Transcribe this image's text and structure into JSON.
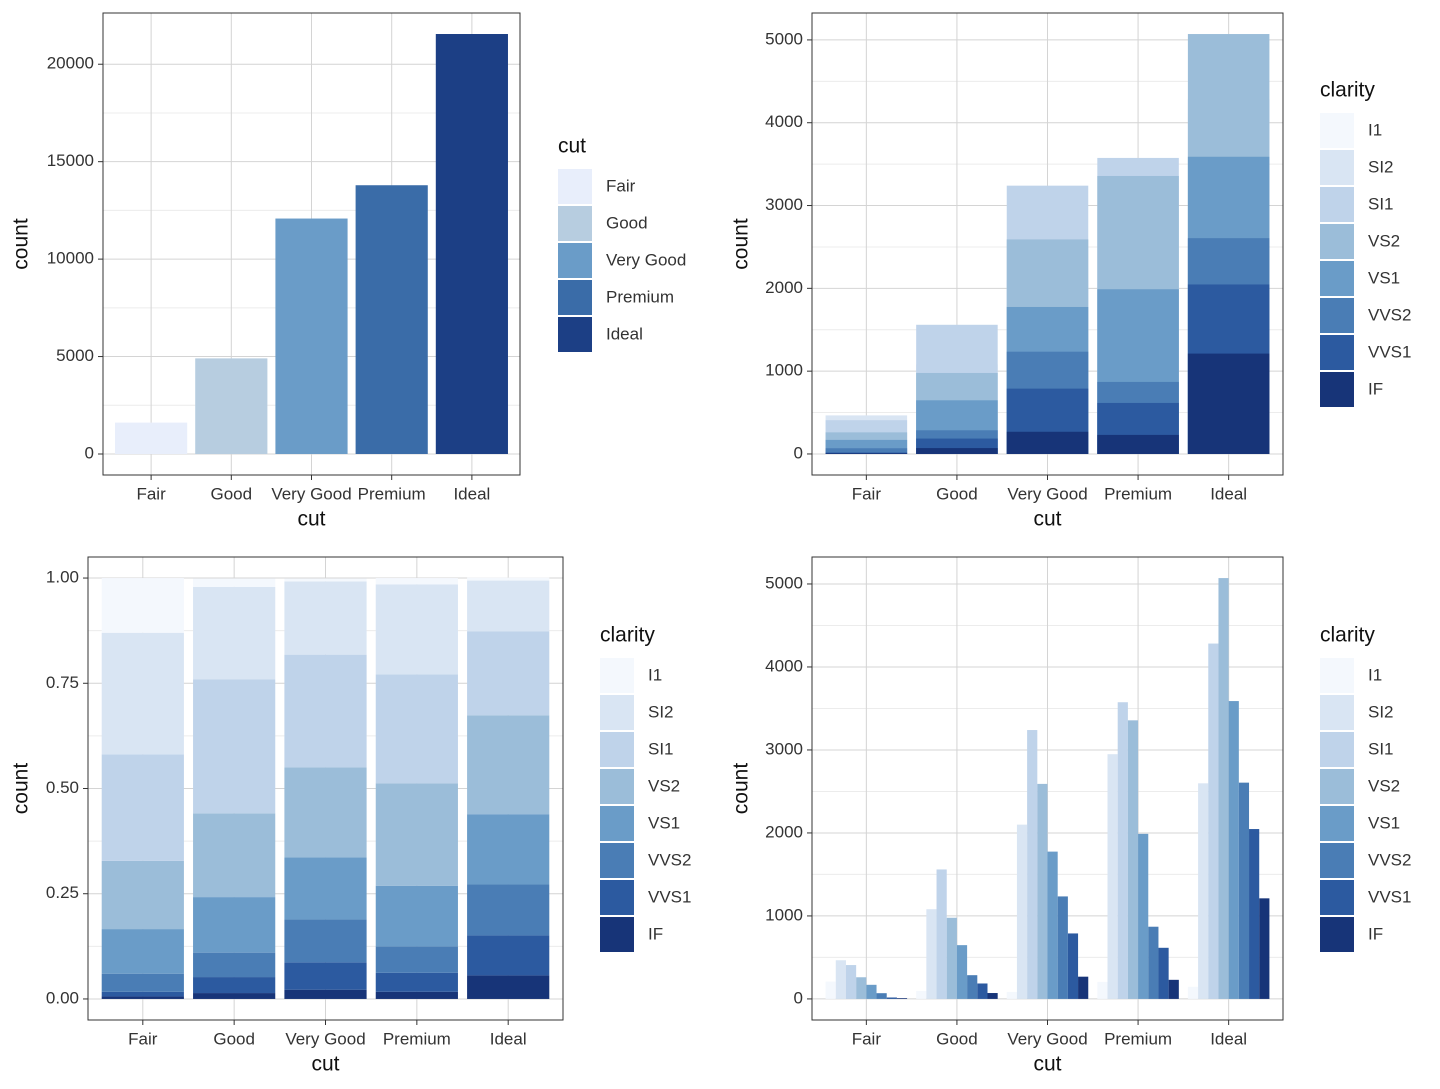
{
  "chart_data": [
    {
      "type": "bar",
      "position": "stack",
      "x_label": "cut",
      "y_label": "count",
      "legend_title": "cut",
      "categories": [
        "Fair",
        "Good",
        "Very Good",
        "Premium",
        "Ideal"
      ],
      "values": [
        1610,
        4906,
        12082,
        13791,
        21551
      ],
      "colors": [
        "#e8eefb",
        "#b7cde0",
        "#6a9cc8",
        "#3a6ca8",
        "#1c3f85"
      ],
      "ylim": [
        -1078,
        22629
      ],
      "yticks": [
        0,
        5000,
        10000,
        15000,
        20000
      ],
      "grid": true
    },
    {
      "type": "bar",
      "position": "identity",
      "x_label": "cut",
      "y_label": "count",
      "legend_title": "clarity",
      "categories": [
        "Fair",
        "Good",
        "Very Good",
        "Premium",
        "Ideal"
      ],
      "series": [
        {
          "name": "I1",
          "color": "#f4f8fd",
          "values": [
            210,
            96,
            84,
            205,
            146
          ]
        },
        {
          "name": "SI2",
          "color": "#d9e5f3",
          "values": [
            466,
            1081,
            2100,
            2949,
            2598
          ]
        },
        {
          "name": "SI1",
          "color": "#bfd3ea",
          "values": [
            408,
            1560,
            3240,
            3575,
            4282
          ]
        },
        {
          "name": "VS2",
          "color": "#9bbdd9",
          "values": [
            261,
            978,
            2591,
            3357,
            5071
          ]
        },
        {
          "name": "VS1",
          "color": "#6a9cc8",
          "values": [
            170,
            648,
            1775,
            1989,
            3589
          ]
        },
        {
          "name": "VVS2",
          "color": "#4a7db5",
          "values": [
            69,
            286,
            1235,
            870,
            2606
          ]
        },
        {
          "name": "VVS1",
          "color": "#2c5aa0",
          "values": [
            17,
            186,
            789,
            616,
            2047
          ]
        },
        {
          "name": "IF",
          "color": "#173478",
          "values": [
            9,
            71,
            268,
            230,
            1212
          ]
        }
      ],
      "ylim": [
        -254,
        5325
      ],
      "yticks": [
        0,
        1000,
        2000,
        3000,
        4000,
        5000
      ],
      "grid": true
    },
    {
      "type": "bar",
      "position": "fill",
      "x_label": "cut",
      "y_label": "count",
      "legend_title": "clarity",
      "categories": [
        "Fair",
        "Good",
        "Very Good",
        "Premium",
        "Ideal"
      ],
      "series": [
        {
          "name": "I1",
          "color": "#f4f8fd",
          "values": [
            0.13,
            0.02,
            0.007,
            0.015,
            0.007
          ]
        },
        {
          "name": "SI2",
          "color": "#d9e5f3",
          "values": [
            0.289,
            0.22,
            0.174,
            0.214,
            0.121
          ]
        },
        {
          "name": "SI1",
          "color": "#bfd3ea",
          "values": [
            0.253,
            0.318,
            0.268,
            0.259,
            0.199
          ]
        },
        {
          "name": "VS2",
          "color": "#9bbdd9",
          "values": [
            0.162,
            0.199,
            0.214,
            0.243,
            0.235
          ]
        },
        {
          "name": "VS1",
          "color": "#6a9cc8",
          "values": [
            0.106,
            0.132,
            0.147,
            0.144,
            0.167
          ]
        },
        {
          "name": "VVS2",
          "color": "#4a7db5",
          "values": [
            0.043,
            0.058,
            0.102,
            0.063,
            0.121
          ]
        },
        {
          "name": "VVS1",
          "color": "#2c5aa0",
          "values": [
            0.011,
            0.038,
            0.065,
            0.045,
            0.095
          ]
        },
        {
          "name": "IF",
          "color": "#173478",
          "values": [
            0.006,
            0.014,
            0.022,
            0.017,
            0.056
          ]
        }
      ],
      "ylim": [
        -0.05,
        1.05
      ],
      "yticks": [
        {
          "value": 0,
          "label": "0.00"
        },
        0.25,
        {
          "value": 0.5,
          "label": "0.50"
        },
        0.75,
        {
          "value": 1,
          "label": "1.00"
        }
      ],
      "grid": true
    },
    {
      "type": "bar",
      "position": "dodge",
      "x_label": "cut",
      "y_label": "count",
      "legend_title": "clarity",
      "categories": [
        "Fair",
        "Good",
        "Very Good",
        "Premium",
        "Ideal"
      ],
      "series": [
        {
          "name": "I1",
          "color": "#f4f8fd",
          "values": [
            210,
            96,
            84,
            205,
            146
          ]
        },
        {
          "name": "SI2",
          "color": "#d9e5f3",
          "values": [
            466,
            1081,
            2100,
            2949,
            2598
          ]
        },
        {
          "name": "SI1",
          "color": "#bfd3ea",
          "values": [
            408,
            1560,
            3240,
            3575,
            4282
          ]
        },
        {
          "name": "VS2",
          "color": "#9bbdd9",
          "values": [
            261,
            978,
            2591,
            3357,
            5071
          ]
        },
        {
          "name": "VS1",
          "color": "#6a9cc8",
          "values": [
            170,
            648,
            1775,
            1989,
            3589
          ]
        },
        {
          "name": "VVS2",
          "color": "#4a7db5",
          "values": [
            69,
            286,
            1235,
            870,
            2606
          ]
        },
        {
          "name": "VVS1",
          "color": "#2c5aa0",
          "values": [
            17,
            186,
            789,
            616,
            2047
          ]
        },
        {
          "name": "IF",
          "color": "#173478",
          "values": [
            9,
            71,
            268,
            230,
            1212
          ]
        }
      ],
      "ylim": [
        -254,
        5325
      ],
      "yticks": [
        0,
        1000,
        2000,
        3000,
        4000,
        5000
      ],
      "grid": true
    }
  ]
}
